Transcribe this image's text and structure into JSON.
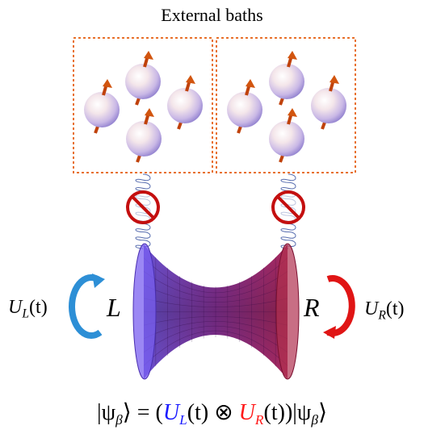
{
  "title": "External baths",
  "labels": {
    "left_region": "L",
    "right_region": "R",
    "left_operator": {
      "symbol": "U",
      "subscript": "L",
      "arg": "(t)"
    },
    "right_operator": {
      "symbol": "U",
      "subscript": "R",
      "arg": "(t)"
    }
  },
  "equation": {
    "lhs": "|ψ",
    "lhs_sub": "β",
    "lhs_close": "⟩",
    "equals": " = (",
    "UL": "U",
    "UL_sub": "L",
    "UL_arg": "(t)",
    "otimes": " ⊗ ",
    "UR": "U",
    "UR_sub": "R",
    "UR_arg": "(t)",
    "rhs": ")|ψ",
    "rhs_sub": "β",
    "rhs_close": "⟩"
  },
  "colors": {
    "bath_border": "#e8702a",
    "arrow_left": "#2d8fd6",
    "arrow_right": "#e01515",
    "spin_arrow": "#c0420c",
    "wormhole_left": "#6a4fe0",
    "wormhole_right": "#b0205a",
    "no_symbol": "#c40f0f",
    "eq_blue": "#1a1aff",
    "eq_red": "#ff1a1a"
  }
}
